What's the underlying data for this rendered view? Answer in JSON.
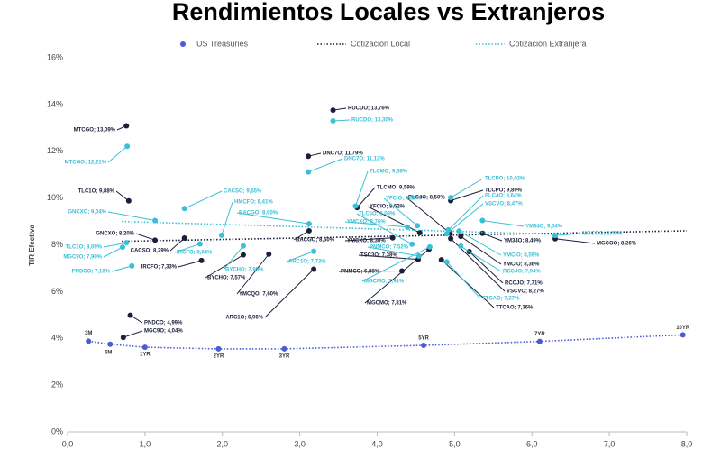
{
  "chart_data": {
    "type": "scatter",
    "title": "Rendimientos Locales vs Extranjeros",
    "y_label": "TIR Efectiva",
    "xlim": [
      0,
      8
    ],
    "ylim": [
      0,
      16
    ],
    "xticks": [
      {
        "value": 0,
        "label": "0,0"
      },
      {
        "value": 1,
        "label": "1,0"
      },
      {
        "value": 2,
        "label": "2,0"
      },
      {
        "value": 3,
        "label": "3,0"
      },
      {
        "value": 4,
        "label": "4,0"
      },
      {
        "value": 5,
        "label": "5,0"
      },
      {
        "value": 6,
        "label": "6,0"
      },
      {
        "value": 7,
        "label": "7,0"
      },
      {
        "value": 8,
        "label": "8,0"
      }
    ],
    "yticks": [
      {
        "value": 0,
        "label": "0%"
      },
      {
        "value": 2,
        "label": "2%"
      },
      {
        "value": 4,
        "label": "4%"
      },
      {
        "value": 6,
        "label": "6%"
      },
      {
        "value": 8,
        "label": "8%"
      },
      {
        "value": 10,
        "label": "10%"
      },
      {
        "value": 12,
        "label": "12%"
      },
      {
        "value": 14,
        "label": "14%"
      },
      {
        "value": 16,
        "label": "16%"
      }
    ],
    "grid": false,
    "series": [
      {
        "name": "US Treasuries",
        "color": "#4a5bd4",
        "x": [
          0.27,
          0.55,
          1.0,
          1.95,
          2.8,
          4.6,
          6.1,
          7.95
        ],
        "values": [
          3.88,
          3.75,
          3.62,
          3.55,
          3.55,
          3.7,
          3.87,
          4.15
        ],
        "point_labels": [
          "3M",
          "6M",
          "1YR",
          "2YR",
          "3YR",
          "5YR",
          "7YR",
          "10YR"
        ]
      },
      {
        "name": "Cotización Local",
        "color": "#1b1f3b",
        "x": [
          0.76,
          0.79,
          1.13,
          1.51,
          1.73,
          2.27,
          2.6,
          0.81,
          0.72,
          3.11,
          3.43,
          3.12,
          3.18,
          3.74,
          4.55,
          4.2,
          4.53,
          4.32,
          4.67,
          4.94,
          4.95,
          5.36,
          5.08,
          5.19,
          4.95,
          4.83,
          6.3
        ],
        "values": [
          13.09,
          9.88,
          8.2,
          8.29,
          7.33,
          7.57,
          7.6,
          4.99,
          4.04,
          11.79,
          13.76,
          8.6,
          6.96,
          9.59,
          8.52,
          8.3,
          7.38,
          6.88,
          7.81,
          8.5,
          9.89,
          8.49,
          8.36,
          7.71,
          8.27,
          7.36,
          8.26
        ],
        "value_labels": [
          "MTCGO; 13,09%",
          "TLC1O; 9,88%",
          "GNCXO; 8,20%",
          "CACSO; 8,29%",
          "IRCFO; 7,33%",
          "BYCHO; 7,57%",
          "YMCQO; 7,60%",
          "PNDCO; 4,99%",
          "MGC9O; 4,04%",
          "DNC7O; 11,79%",
          "RUCDO; 13,76%",
          "BACGO; 8,60%",
          "ARC1O; 6,96%",
          "TLCMO; 9,59%",
          "YFCIO; 8,52%",
          "YMCXO; 8,30%",
          "TSC3O; 7,38%",
          "PNMCO; 6,88%",
          "MGCMO; 7,81%",
          "PLC4O; 8,50%",
          "TLCPO; 9,89%",
          "YM34O; 8,49%",
          "YMCIO; 8,36%",
          "RCCJO; 7,71%",
          "VSCVO; 8,27%",
          "TTCAO; 7,36%",
          "MGCOO; 8,26%"
        ],
        "trend": {
          "x": [
            0.7,
            8.0
          ],
          "values": [
            8.15,
            8.6
          ]
        }
      },
      {
        "name": "Cotización Extranjera",
        "color": "#3bbfd6",
        "x": [
          0.77,
          1.13,
          0.76,
          0.71,
          0.83,
          1.51,
          1.71,
          1.99,
          2.27,
          3.12,
          3.11,
          3.43,
          3.18,
          3.72,
          4.39,
          4.52,
          4.45,
          4.54,
          4.68,
          4.95,
          4.92,
          4.9,
          5.36,
          5.06,
          5.08,
          4.9,
          6.3
        ],
        "values": [
          12.21,
          9.04,
          8.09,
          7.9,
          7.1,
          9.55,
          8.04,
          8.41,
          7.95,
          8.9,
          11.12,
          13.3,
          7.72,
          9.66,
          8.76,
          8.82,
          8.03,
          7.52,
          7.91,
          10.02,
          8.64,
          8.47,
          9.04,
          8.59,
          7.94,
          7.27,
          8.4
        ],
        "value_labels": [
          "MTCGO; 12,21%",
          "GNCXO; 9,04%",
          "TLC1O; 8,09%",
          "MGC9O; 7,90%",
          "PNDCO; 7,10%",
          "CACSO; 9,55%",
          "IRCFO; 8,04%",
          "HMCFO; 8,41%",
          "BYCHO; 7,95%",
          "BACGO; 8,90%",
          "DNC7O; 11,12%",
          "RUCDO; 13,30%",
          "ARC1O; 7,72%",
          "TLCMO; 9,66%",
          "YMCXO; 8,76%",
          "YFCIO; 8,82%",
          "TLC5O; 8,03%",
          "PNMCO; 7,52%",
          "MGCMO; 7,91%",
          "TLCPO; 10,02%",
          "PLC4O; 8,64%",
          "VSCVO; 8,47%",
          "YM34O; 9,04%",
          "YMCIO; 8,59%",
          "RCCJO; 7,94%",
          "TTCAO; 7,27%",
          "MGCOO; 8,40%"
        ],
        "trend": {
          "x": [
            0.7,
            6.3
          ],
          "values": [
            9.0,
            8.45
          ]
        }
      }
    ]
  }
}
